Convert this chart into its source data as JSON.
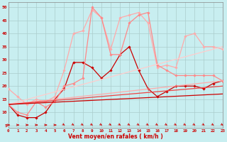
{
  "bg_color": "#c8eef0",
  "grid_color": "#aacccc",
  "xlabel": "Vent moyen/en rafales ( km/h )",
  "xlim": [
    0,
    23
  ],
  "ylim": [
    4,
    52
  ],
  "yticks": [
    5,
    10,
    15,
    20,
    25,
    30,
    35,
    40,
    45,
    50
  ],
  "lines": [
    {
      "x": [
        0,
        1,
        2,
        3,
        4,
        5,
        6,
        7,
        8,
        9,
        10,
        11,
        12,
        13,
        14,
        15,
        16,
        17,
        18,
        19,
        20,
        21,
        22,
        23
      ],
      "y": [
        13,
        9,
        8,
        8,
        10,
        15,
        19,
        29,
        29,
        27,
        23,
        26,
        32,
        35,
        26,
        19,
        16,
        18,
        20,
        20,
        20,
        19,
        21,
        22
      ],
      "color": "#cc0000",
      "lw": 0.9,
      "marker": "D",
      "ms": 1.8
    },
    {
      "x": [
        0,
        1,
        2,
        3,
        4,
        5,
        6,
        7,
        8,
        9,
        10,
        11,
        12,
        13,
        14,
        15,
        16,
        17,
        18,
        19,
        20,
        21,
        22,
        23
      ],
      "y": [
        19,
        16,
        13,
        15,
        14,
        16,
        26,
        40,
        41,
        49,
        46,
        34,
        46,
        47,
        48,
        44,
        27,
        28,
        27,
        39,
        40,
        35,
        35,
        34
      ],
      "color": "#ffaaaa",
      "lw": 0.9,
      "marker": "D",
      "ms": 1.8
    },
    {
      "x": [
        0,
        1,
        2,
        3,
        4,
        5,
        6,
        7,
        8,
        9,
        10,
        11,
        12,
        13,
        14,
        15,
        16,
        17,
        18,
        19,
        20,
        21,
        22,
        23
      ],
      "y": [
        13,
        10,
        9,
        14,
        12,
        14,
        20,
        21,
        23,
        50,
        46,
        32,
        32,
        44,
        47,
        48,
        28,
        26,
        24,
        24,
        24,
        24,
        24,
        22
      ],
      "color": "#ff8888",
      "lw": 0.9,
      "marker": "D",
      "ms": 1.8
    },
    {
      "x": [
        0,
        23
      ],
      "y": [
        13,
        35
      ],
      "color": "#ffcccc",
      "lw": 0.9,
      "marker": null,
      "ms": 0
    },
    {
      "x": [
        0,
        23
      ],
      "y": [
        13,
        22
      ],
      "color": "#ffaaaa",
      "lw": 0.9,
      "marker": null,
      "ms": 0
    },
    {
      "x": [
        0,
        23
      ],
      "y": [
        13,
        20
      ],
      "color": "#ee4444",
      "lw": 0.9,
      "marker": null,
      "ms": 0
    },
    {
      "x": [
        0,
        23
      ],
      "y": [
        13,
        17
      ],
      "color": "#cc0000",
      "lw": 0.9,
      "marker": null,
      "ms": 0
    }
  ],
  "arrow_color": "#cc0000",
  "wind_x": [
    0,
    1,
    2,
    3,
    4,
    5,
    6,
    7,
    8,
    9,
    10,
    11,
    12,
    13,
    14,
    15,
    16,
    17,
    18,
    19,
    20,
    21,
    22,
    23
  ],
  "wind_dirs": [
    "r",
    "r",
    "r",
    "r",
    "r",
    "r",
    "d",
    "d",
    "d",
    "d",
    "d",
    "d",
    "d",
    "d",
    "d",
    "d",
    "d",
    "d",
    "d",
    "d",
    "d",
    "d",
    "d",
    "d"
  ]
}
